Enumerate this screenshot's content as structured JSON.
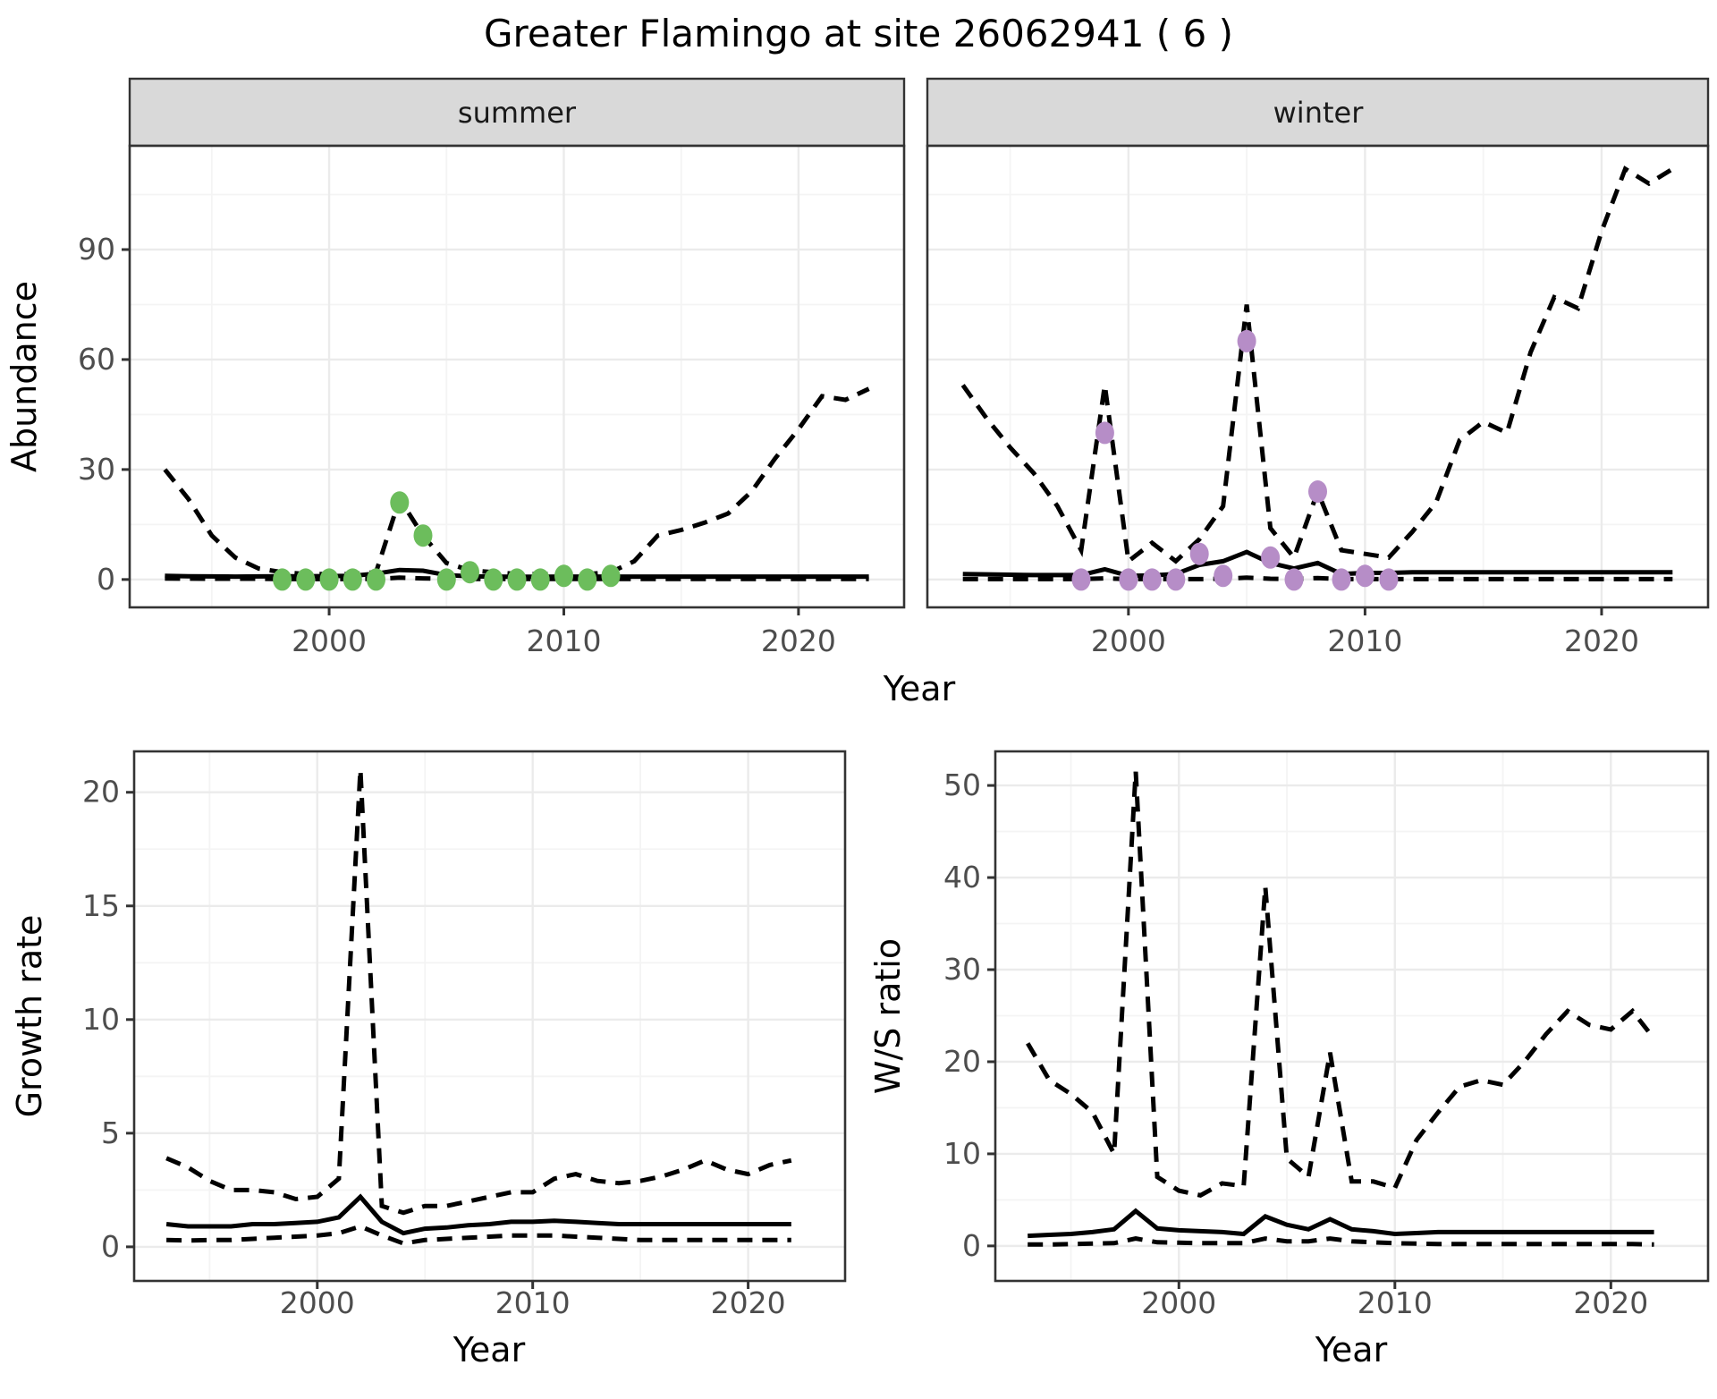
{
  "title": "Greater Flamingo at site 26062941 ( 6 )",
  "facets": [
    {
      "label": "summer"
    },
    {
      "label": "winter"
    }
  ],
  "axis_titles": {
    "abundance": "Abundance",
    "growth": "Growth rate",
    "ws": "W/S ratio",
    "year": "Year"
  },
  "colors": {
    "summer_points": "#6cbd5c",
    "winter_points": "#b68dc7",
    "line": "#000000",
    "strip_bg": "#d9d9d9",
    "panel_border": "#333333",
    "grid_major": "#ebebeb",
    "grid_minor": "#f4f4f4",
    "tick_text": "#4d4d4d",
    "tick_mark": "#333333"
  },
  "chart_data": [
    {
      "id": "abundance-summer",
      "type": "line",
      "facet": "summer",
      "title": "",
      "xlabel": "Year",
      "ylabel": "Abundance",
      "x": [
        1993,
        1994,
        1995,
        1996,
        1997,
        1998,
        1999,
        2000,
        2001,
        2002,
        2003,
        2004,
        2005,
        2006,
        2007,
        2008,
        2009,
        2010,
        2011,
        2012,
        2013,
        2014,
        2015,
        2016,
        2017,
        2018,
        2019,
        2020,
        2021,
        2022,
        2023
      ],
      "series": [
        {
          "name": "upper_ci",
          "style": "dashed",
          "values": [
            30,
            22,
            12,
            6,
            3,
            2,
            1.5,
            1.5,
            1.5,
            2,
            22,
            12,
            4.5,
            2.5,
            2,
            1.5,
            1.5,
            1.5,
            1.5,
            2,
            5,
            12,
            13.5,
            15.5,
            18,
            24,
            33,
            41,
            50,
            49,
            52
          ]
        },
        {
          "name": "mean",
          "style": "solid",
          "values": [
            1,
            0.9,
            0.85,
            0.8,
            0.85,
            0.9,
            0.9,
            0.95,
            1,
            1.6,
            2.6,
            2.4,
            1.2,
            0.9,
            0.8,
            0.75,
            0.75,
            0.8,
            0.8,
            0.8,
            0.8,
            0.8,
            0.8,
            0.8,
            0.8,
            0.8,
            0.8,
            0.8,
            0.8,
            0.8,
            0.8
          ]
        },
        {
          "name": "lower_ci",
          "style": "dashed",
          "values": [
            0.25,
            0.22,
            0.2,
            0.2,
            0.2,
            0.1,
            0.1,
            0.1,
            0.1,
            0.15,
            0.5,
            0.3,
            0.15,
            0.15,
            0.15,
            0.15,
            0.15,
            0.15,
            0.15,
            0.15,
            0.15,
            0.15,
            0.15,
            0.15,
            0.15,
            0.15,
            0.15,
            0.15,
            0.15,
            0.15,
            0.15
          ]
        }
      ],
      "points": {
        "name": "summer_observations",
        "color_key": "summer_points",
        "x": [
          1998,
          1999,
          2000,
          2001,
          2002,
          2003,
          2004,
          2005,
          2006,
          2007,
          2008,
          2009,
          2010,
          2011,
          2012
        ],
        "y": [
          0,
          0,
          0,
          0,
          0,
          21,
          12,
          0,
          2,
          0,
          0,
          0,
          1,
          0,
          1
        ]
      },
      "xlim": [
        1991.5,
        2024.5
      ],
      "ylim": [
        -7.6,
        118.3
      ],
      "xticks": [
        2000,
        2010,
        2020
      ],
      "yticks": [
        0,
        30,
        60,
        90
      ],
      "xminor": [
        1995,
        2005,
        2015
      ],
      "yminor": [
        15,
        45,
        75,
        105
      ]
    },
    {
      "id": "abundance-winter",
      "type": "line",
      "facet": "winter",
      "title": "",
      "xlabel": "Year",
      "ylabel": "Abundance",
      "x": [
        1993,
        1994,
        1995,
        1996,
        1997,
        1998,
        1999,
        2000,
        2001,
        2002,
        2003,
        2004,
        2005,
        2006,
        2007,
        2008,
        2009,
        2010,
        2011,
        2012,
        2013,
        2014,
        2015,
        2016,
        2017,
        2018,
        2019,
        2020,
        2021,
        2022,
        2023
      ],
      "series": [
        {
          "name": "upper_ci",
          "style": "dashed",
          "values": [
            53,
            44,
            36,
            29,
            20,
            8,
            53,
            5,
            10,
            5,
            11,
            20,
            75,
            14,
            6,
            24,
            8,
            7,
            6,
            13,
            21,
            38,
            43,
            40,
            62,
            77,
            74,
            95,
            112,
            108,
            112
          ]
        },
        {
          "name": "mean",
          "style": "solid",
          "values": [
            1.5,
            1.4,
            1.3,
            1.2,
            1.2,
            1.2,
            2.8,
            1,
            1.1,
            1.5,
            4,
            5,
            7.5,
            4.5,
            3,
            4.5,
            1.5,
            1.8,
            1.8,
            2,
            2,
            2,
            2,
            2,
            2,
            2,
            2,
            2,
            2,
            2,
            2
          ]
        },
        {
          "name": "lower_ci",
          "style": "dashed",
          "values": [
            0.1,
            0.1,
            0.1,
            0.1,
            0.1,
            0.1,
            0.3,
            0.1,
            0.1,
            0.1,
            0.1,
            0.2,
            0.5,
            0.2,
            0.1,
            0.4,
            0.1,
            0.1,
            0.1,
            0.1,
            0.1,
            0.1,
            0.1,
            0.1,
            0.1,
            0.1,
            0.1,
            0.1,
            0.1,
            0.1,
            0.1
          ]
        }
      ],
      "points": {
        "name": "winter_observations",
        "color_key": "winter_points",
        "x": [
          1998,
          1999,
          2000,
          2001,
          2002,
          2003,
          2004,
          2005,
          2006,
          2007,
          2008,
          2009,
          2010,
          2011
        ],
        "y": [
          0,
          40,
          0,
          0,
          0,
          7,
          1,
          65,
          6,
          0,
          24,
          0,
          1,
          0
        ]
      },
      "xlim": [
        1991.5,
        2024.5
      ],
      "ylim": [
        -7.6,
        118.3
      ],
      "xticks": [
        2000,
        2010,
        2020
      ],
      "yticks": [
        0,
        30,
        60,
        90
      ],
      "xminor": [
        1995,
        2005,
        2015
      ],
      "yminor": [
        15,
        45,
        75,
        105
      ]
    },
    {
      "id": "growth",
      "type": "line",
      "facet": "",
      "title": "",
      "xlabel": "Year",
      "ylabel": "Growth rate",
      "x": [
        1993,
        1994,
        1995,
        1996,
        1997,
        1998,
        1999,
        2000,
        2001,
        2002,
        2003,
        2004,
        2005,
        2006,
        2007,
        2008,
        2009,
        2010,
        2011,
        2012,
        2013,
        2014,
        2015,
        2016,
        2017,
        2018,
        2019,
        2020,
        2021,
        2022
      ],
      "series": [
        {
          "name": "upper_ci",
          "style": "dashed",
          "values": [
            3.9,
            3.5,
            2.9,
            2.5,
            2.5,
            2.4,
            2.1,
            2.2,
            3,
            21,
            1.8,
            1.5,
            1.8,
            1.8,
            2,
            2.2,
            2.4,
            2.4,
            3,
            3.2,
            2.9,
            2.8,
            2.9,
            3.1,
            3.4,
            3.8,
            3.4,
            3.2,
            3.6,
            3.8
          ]
        },
        {
          "name": "mean",
          "style": "solid",
          "values": [
            1,
            0.9,
            0.9,
            0.9,
            1,
            1,
            1.05,
            1.1,
            1.3,
            2.2,
            1.1,
            0.6,
            0.8,
            0.85,
            0.95,
            1,
            1.1,
            1.1,
            1.15,
            1.1,
            1.05,
            1,
            1,
            1,
            1,
            1,
            1,
            1,
            1,
            1
          ]
        },
        {
          "name": "lower_ci",
          "style": "dashed",
          "values": [
            0.3,
            0.28,
            0.3,
            0.3,
            0.35,
            0.4,
            0.45,
            0.5,
            0.6,
            0.9,
            0.5,
            0.15,
            0.3,
            0.35,
            0.4,
            0.45,
            0.5,
            0.5,
            0.5,
            0.45,
            0.4,
            0.35,
            0.3,
            0.3,
            0.3,
            0.3,
            0.3,
            0.3,
            0.3,
            0.3
          ]
        }
      ],
      "points": null,
      "xlim": [
        1991.5,
        2024.5
      ],
      "ylim": [
        -1.5,
        21.8
      ],
      "xticks": [
        2000,
        2010,
        2020
      ],
      "yticks": [
        0,
        5,
        10,
        15,
        20
      ],
      "xminor": [
        1995,
        2005,
        2015
      ],
      "yminor": [
        2.5,
        7.5,
        12.5,
        17.5
      ]
    },
    {
      "id": "ws",
      "type": "line",
      "facet": "",
      "title": "",
      "xlabel": "Year",
      "ylabel": "W/S ratio",
      "x": [
        1993,
        1994,
        1995,
        1996,
        1997,
        1998,
        1999,
        2000,
        2001,
        2002,
        2003,
        2004,
        2005,
        2006,
        2007,
        2008,
        2009,
        2010,
        2011,
        2012,
        2013,
        2014,
        2015,
        2016,
        2017,
        2018,
        2019,
        2020,
        2021,
        2022
      ],
      "series": [
        {
          "name": "upper_ci",
          "style": "dashed",
          "values": [
            22,
            18,
            16.5,
            14.5,
            10,
            51.5,
            7.5,
            6,
            5.5,
            6.8,
            6.5,
            39,
            9.5,
            7.5,
            21,
            7,
            7,
            6.3,
            11.5,
            14.5,
            17.3,
            18,
            17.5,
            20,
            23,
            25.5,
            24,
            23.5,
            25.5,
            22.5
          ]
        },
        {
          "name": "mean",
          "style": "solid",
          "values": [
            1.1,
            1.2,
            1.3,
            1.5,
            1.8,
            3.8,
            1.9,
            1.7,
            1.6,
            1.5,
            1.3,
            3.2,
            2.3,
            1.8,
            2.9,
            1.8,
            1.6,
            1.3,
            1.4,
            1.5,
            1.5,
            1.5,
            1.5,
            1.5,
            1.5,
            1.5,
            1.5,
            1.5,
            1.5,
            1.5
          ]
        },
        {
          "name": "lower_ci",
          "style": "dashed",
          "values": [
            0.15,
            0.15,
            0.2,
            0.25,
            0.3,
            0.8,
            0.4,
            0.35,
            0.3,
            0.3,
            0.3,
            0.8,
            0.5,
            0.5,
            0.8,
            0.5,
            0.4,
            0.3,
            0.25,
            0.2,
            0.2,
            0.2,
            0.2,
            0.2,
            0.2,
            0.2,
            0.2,
            0.2,
            0.2,
            0.15
          ]
        }
      ],
      "points": null,
      "xlim": [
        1991.5,
        2024.5
      ],
      "ylim": [
        -3.8,
        53.7
      ],
      "xticks": [
        2000,
        2010,
        2020
      ],
      "yticks": [
        0,
        10,
        20,
        30,
        40,
        50
      ],
      "xminor": [
        1995,
        2005,
        2015
      ],
      "yminor": [
        5,
        15,
        25,
        35,
        45
      ]
    }
  ]
}
